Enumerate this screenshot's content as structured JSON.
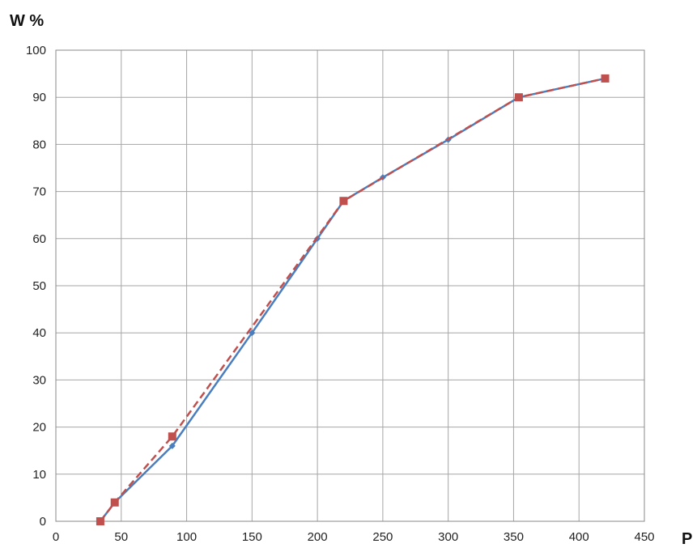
{
  "chart_data": {
    "type": "line",
    "title": "",
    "xlabel": "P",
    "ylabel": "W %",
    "xlim": [
      0,
      450
    ],
    "ylim": [
      0,
      100
    ],
    "x_ticks": [
      0,
      50,
      100,
      150,
      200,
      250,
      300,
      350,
      400,
      450
    ],
    "y_ticks": [
      0,
      10,
      20,
      30,
      40,
      50,
      60,
      70,
      80,
      90,
      100
    ],
    "grid": true,
    "legend": "none",
    "series": [
      {
        "style": "solid",
        "color": "#4a7ebf",
        "marker": "diamond",
        "x": [
          34,
          45,
          89,
          150,
          200,
          220,
          250,
          300,
          354,
          420
        ],
        "y": [
          0,
          4,
          16,
          40,
          60,
          68,
          73,
          81,
          90,
          94
        ]
      },
      {
        "style": "dashed",
        "color": "#c0504d",
        "marker": "square",
        "x": [
          34,
          45,
          89,
          220,
          354,
          420
        ],
        "y": [
          0,
          4,
          18,
          68,
          90,
          94
        ]
      }
    ]
  }
}
